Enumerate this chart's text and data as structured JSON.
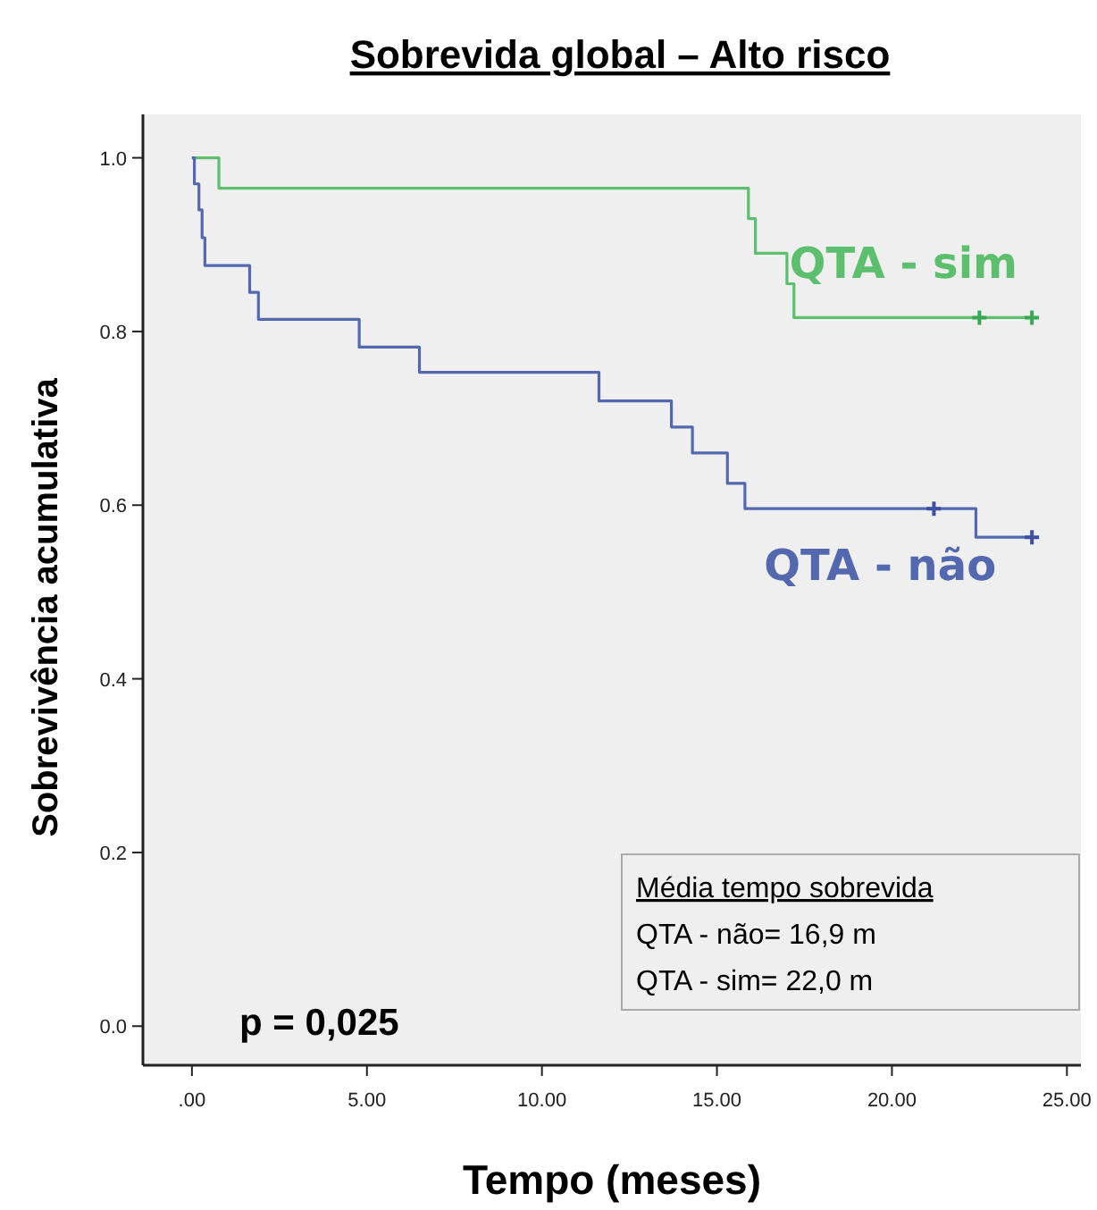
{
  "chart_data": {
    "type": "step",
    "title": "Sobrevida global – Alto risco",
    "xlabel": "Tempo (meses)",
    "ylabel": "Sobrevivência acumulativa",
    "xlim": [
      -1.4,
      25.4
    ],
    "ylim": [
      -0.045,
      1.05
    ],
    "xticks": [
      {
        "value": 0,
        "label": ".00"
      },
      {
        "value": 5,
        "label": "5.00"
      },
      {
        "value": 10,
        "label": "10.00"
      },
      {
        "value": 15,
        "label": "15.00"
      },
      {
        "value": 20,
        "label": "20.00"
      },
      {
        "value": 25,
        "label": "25.00"
      }
    ],
    "yticks": [
      {
        "value": 0,
        "label": "0.0"
      },
      {
        "value": 0.2,
        "label": "0.2"
      },
      {
        "value": 0.4,
        "label": "0.4"
      },
      {
        "value": 0.6,
        "label": "0.6"
      },
      {
        "value": 0.8,
        "label": "0.8"
      },
      {
        "value": 1,
        "label": "1.0"
      }
    ],
    "grid": false,
    "line_style": "solid",
    "series": [
      {
        "name": "QTA - sim",
        "color": "#5cbf6e",
        "x": [
          0,
          0.77,
          15.9,
          16.1,
          17.0,
          17.2,
          24.0
        ],
        "values": [
          1,
          0.965,
          0.93,
          0.89,
          0.855,
          0.816,
          0.816
        ]
      },
      {
        "name": "QTA - não",
        "color": "#5468b0",
        "x": [
          0,
          0.07,
          0.2,
          0.29,
          0.37,
          1.65,
          1.9,
          4.78,
          6.5,
          11.63,
          13.7,
          14.3,
          15.3,
          15.8,
          22.4,
          24.0
        ],
        "values": [
          1,
          0.97,
          0.94,
          0.908,
          0.876,
          0.845,
          0.814,
          0.782,
          0.753,
          0.72,
          0.69,
          0.66,
          0.625,
          0.596,
          0.563,
          0.563
        ]
      },
      {
        "type": "scatter",
        "marker": "cross",
        "color": "#3aa852",
        "x": [
          22.5,
          24.0
        ],
        "values": [
          0.816,
          0.816
        ]
      },
      {
        "type": "scatter",
        "marker": "cross",
        "color": "#3c4fa0",
        "x": [
          21.2,
          24.0
        ],
        "values": [
          0.596,
          0.563
        ]
      }
    ],
    "annotations": [
      "p = 0,025",
      "Média tempo sobrevida",
      "QTA - não= 16,9 m",
      "QTA - sim= 22,0 m"
    ]
  }
}
